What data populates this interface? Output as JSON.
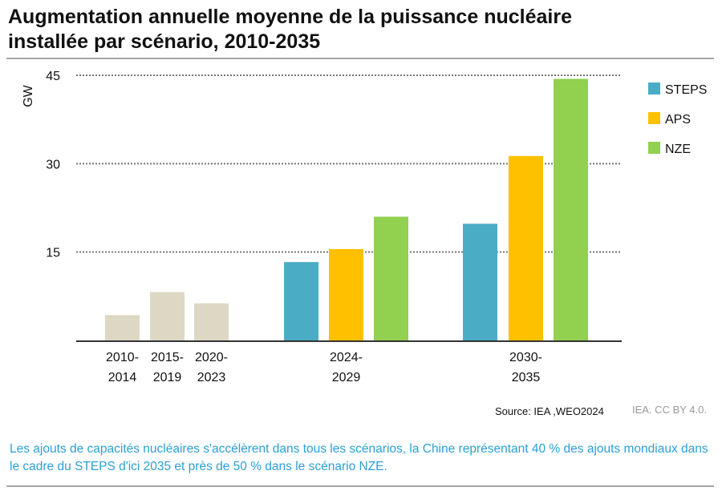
{
  "title_line1": "Augmentation annuelle moyenne de la puissance nucléaire",
  "title_line2": "installée par scénario, 2010-2035",
  "source": "Source: IEA ,WEO2024",
  "credit": "IEA. CC BY 4.0.",
  "caption": "Les ajouts de capacités nucléaires s'accélèrent dans tous les scénarios, la Chine représentant 40 % des ajouts mondiaux dans le cadre du STEPS d'ici 2035 et près de 50 % dans le scénario NZE.",
  "chart_data": {
    "type": "bar",
    "ylabel": "GW",
    "ylim": [
      0,
      45
    ],
    "yticks": [
      15,
      30,
      45
    ],
    "grid": "horizontal dotted",
    "legend_position": "right",
    "historical": {
      "color": "#ddd8c4",
      "categories": [
        [
          "2010-",
          "2014"
        ],
        [
          "2015-",
          "2019"
        ],
        [
          "2020-",
          "2023"
        ]
      ],
      "values": [
        4.3,
        8.2,
        6.3
      ]
    },
    "groups": [
      [
        "2024-",
        "2029"
      ],
      [
        "2030-",
        "2035"
      ]
    ],
    "series": [
      {
        "name": "STEPS",
        "color": "#4bacc6",
        "values": [
          13.3,
          19.8
        ]
      },
      {
        "name": "APS",
        "color": "#ffc000",
        "values": [
          15.5,
          31.3
        ]
      },
      {
        "name": "NZE",
        "color": "#92d050",
        "values": [
          21.0,
          44.4
        ]
      }
    ]
  }
}
